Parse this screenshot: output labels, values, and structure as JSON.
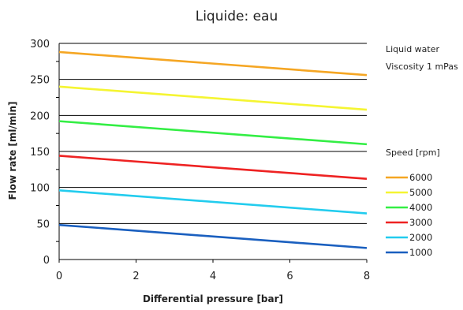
{
  "chart_data": {
    "type": "line",
    "title": "Liquide: eau",
    "xlabel": "Differential pressure [bar]",
    "ylabel": "Flow rate [ml/min]",
    "xlim": [
      0,
      8
    ],
    "ylim": [
      0,
      300
    ],
    "x_ticks": [
      0,
      2,
      4,
      6,
      8
    ],
    "y_ticks": [
      0,
      50,
      100,
      150,
      200,
      250,
      300
    ],
    "grid": "horizontal",
    "annotations": [
      "Liquid water",
      "Viscosity 1 mPas"
    ],
    "legend_title": "Speed [rpm]",
    "legend_position": "right",
    "series": [
      {
        "name": "6000",
        "color": "#f5a623",
        "x": [
          0,
          8
        ],
        "y": [
          288,
          256
        ]
      },
      {
        "name": "5000",
        "color": "#f5f532",
        "x": [
          0,
          8
        ],
        "y": [
          240,
          208
        ]
      },
      {
        "name": "4000",
        "color": "#33ee44",
        "x": [
          0,
          8
        ],
        "y": [
          192,
          160
        ]
      },
      {
        "name": "3000",
        "color": "#ee2222",
        "x": [
          0,
          8
        ],
        "y": [
          144,
          112
        ]
      },
      {
        "name": "2000",
        "color": "#22ccee",
        "x": [
          0,
          8
        ],
        "y": [
          96,
          64
        ]
      },
      {
        "name": "1000",
        "color": "#1a5fbf",
        "x": [
          0,
          8
        ],
        "y": [
          48,
          16
        ]
      }
    ]
  }
}
